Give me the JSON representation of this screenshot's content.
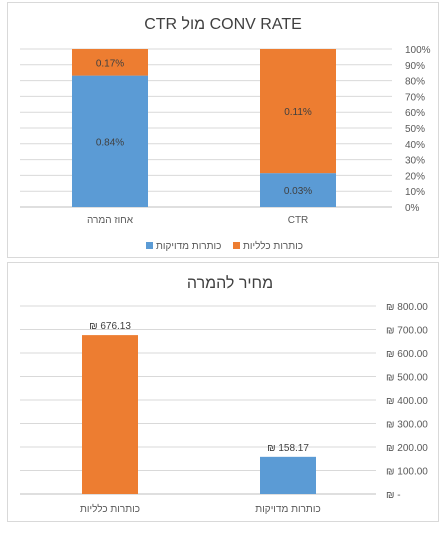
{
  "chart_data": [
    {
      "type": "bar",
      "stacked": "percent",
      "title": "CTR מול CONV RATE",
      "categories": [
        "אחוז המרה",
        "CTR"
      ],
      "series": [
        {
          "name": "כותרות מדויקות",
          "values": [
            0.84,
            0.03
          ],
          "labels": [
            "0.84%",
            "0.03%"
          ],
          "color": "#5b9bd5"
        },
        {
          "name": "כותרות כלליות",
          "values": [
            0.17,
            0.11
          ],
          "labels": [
            "0.17%",
            "0.11%"
          ],
          "color": "#ed7d31"
        }
      ],
      "ytick_labels": [
        "0%",
        "10%",
        "20%",
        "30%",
        "40%",
        "50%",
        "60%",
        "70%",
        "80%",
        "90%",
        "100%"
      ],
      "ylim": [
        0,
        100
      ],
      "legend": "bottom",
      "grid": true
    },
    {
      "type": "bar",
      "title": "מחיר להמרה",
      "categories": [
        "כותרות כלליות",
        "כותרות מדויקות"
      ],
      "values": [
        676.13,
        158.17
      ],
      "labels": [
        "₪ 676.13",
        "₪ 158.17"
      ],
      "colors": [
        "#ed7d31",
        "#5b9bd5"
      ],
      "ytick_labels": [
        "₪ -",
        "₪ 100.00",
        "₪ 200.00",
        "₪ 300.00",
        "₪ 400.00",
        "₪ 500.00",
        "₪ 600.00",
        "₪ 700.00",
        "₪ 800.00"
      ],
      "ylim": [
        0,
        800
      ],
      "grid": true
    }
  ]
}
